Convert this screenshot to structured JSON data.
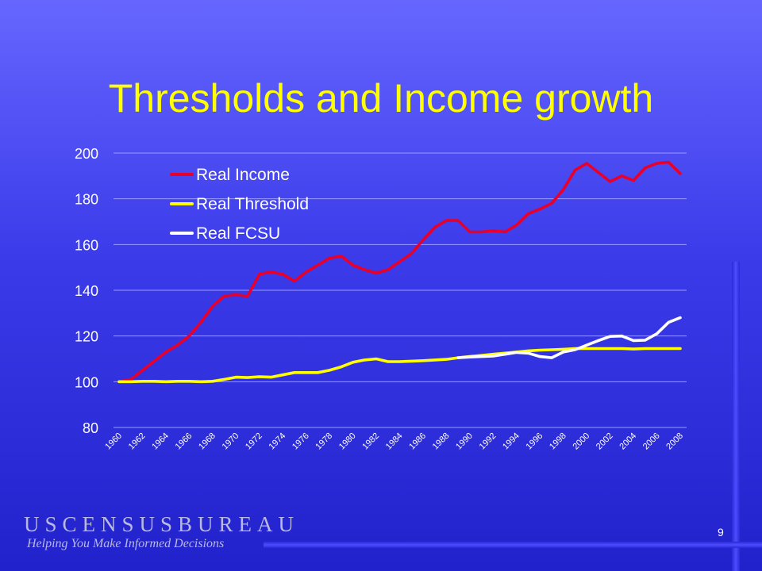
{
  "slide": {
    "title": "Thresholds and Income growth",
    "page_number": "9",
    "logo_name": "USCENSUSBUREAU",
    "logo_tagline": "Helping You Make Informed Decisions"
  },
  "colors": {
    "title": "#ffff00",
    "real_income": "#e8002a",
    "real_threshold": "#ffff00",
    "real_fcsu": "#ffffff"
  },
  "chart_data": {
    "type": "line",
    "title": "",
    "xlabel": "",
    "ylabel": "",
    "ylim": [
      80,
      200
    ],
    "yticks": [
      80,
      100,
      120,
      140,
      160,
      180,
      200
    ],
    "xlim": [
      1960,
      2008
    ],
    "xticks": [
      1960,
      1962,
      1964,
      1966,
      1968,
      1970,
      1972,
      1974,
      1976,
      1978,
      1980,
      1982,
      1984,
      1986,
      1988,
      1990,
      1992,
      1994,
      1996,
      1998,
      2000,
      2002,
      2004,
      2006,
      2008
    ],
    "grid": true,
    "legend_position": "top-left",
    "series": [
      {
        "name": "Real Income",
        "color": "#e8002a",
        "x": [
          1960,
          1961,
          1962,
          1963,
          1964,
          1965,
          1966,
          1967,
          1968,
          1969,
          1970,
          1971,
          1972,
          1973,
          1974,
          1975,
          1976,
          1977,
          1978,
          1979,
          1980,
          1981,
          1982,
          1983,
          1984,
          1985,
          1986,
          1987,
          1988,
          1989,
          1990,
          1991,
          1992,
          1993,
          1994,
          1995,
          1996,
          1997,
          1998,
          1999,
          2000,
          2001,
          2002,
          2003,
          2004,
          2005,
          2006,
          2007,
          2008
        ],
        "values": [
          100,
          101,
          105,
          109,
          113,
          116,
          120,
          126,
          133,
          137.5,
          138,
          137.5,
          147,
          148,
          147,
          144,
          148,
          151,
          154,
          155,
          151,
          149,
          147.5,
          149,
          152.5,
          156,
          162,
          167.5,
          170.5,
          170.5,
          165.5,
          165.5,
          166,
          165.5,
          168.5,
          173.5,
          175.5,
          178,
          184,
          192.5,
          195.5,
          191.5,
          187.5,
          190,
          188,
          193.5,
          195.5,
          196,
          191
        ]
      },
      {
        "name": "Real Threshold",
        "color": "#ffff00",
        "x": [
          1960,
          1961,
          1962,
          1963,
          1964,
          1965,
          1966,
          1967,
          1968,
          1969,
          1970,
          1971,
          1972,
          1973,
          1974,
          1975,
          1976,
          1977,
          1978,
          1979,
          1980,
          1981,
          1982,
          1983,
          1984,
          1985,
          1986,
          1987,
          1988,
          1989,
          1990,
          1991,
          1992,
          1993,
          1994,
          1995,
          1996,
          1997,
          1998,
          1999,
          2000,
          2001,
          2002,
          2003,
          2004,
          2005,
          2006,
          2007,
          2008
        ],
        "values": [
          100,
          100,
          100.2,
          100.2,
          100,
          100.2,
          100.2,
          100,
          100.2,
          101,
          102,
          101.8,
          102.2,
          102,
          103,
          104,
          104,
          104,
          105,
          106.5,
          108.5,
          109.5,
          110,
          108.8,
          108.8,
          109,
          109.2,
          109.5,
          109.8,
          110.5,
          111,
          111.5,
          112,
          112.5,
          113,
          113.5,
          113.8,
          114,
          114.2,
          114.5,
          114.5,
          114.5,
          114.5,
          114.5,
          114.3,
          114.5,
          114.5,
          114.5,
          114.5
        ]
      },
      {
        "name": "Real FCSU",
        "color": "#ffffff",
        "x": [
          1989,
          1990,
          1991,
          1992,
          1993,
          1994,
          1995,
          1996,
          1997,
          1998,
          1999,
          2000,
          2001,
          2002,
          2003,
          2004,
          2005,
          2006,
          2007,
          2008
        ],
        "values": [
          110.5,
          110.8,
          111,
          111.2,
          112,
          112.8,
          112.5,
          111,
          110.5,
          113,
          114,
          116,
          118,
          119.8,
          120,
          118,
          118.2,
          121,
          126,
          128
        ]
      }
    ]
  }
}
